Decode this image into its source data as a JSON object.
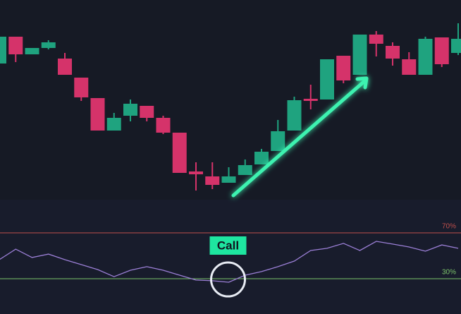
{
  "chart_data": [
    {
      "type": "candlestick",
      "up_color": "#1fa37f",
      "down_color": "#d5336a",
      "ylim": [
        20,
        300
      ],
      "open": [
        210,
        248,
        223,
        232,
        217,
        190,
        161,
        115,
        136,
        150,
        133,
        112,
        57,
        50,
        41,
        52,
        67,
        86,
        115,
        160,
        159,
        221,
        194,
        251,
        235,
        216,
        194,
        247,
        225
      ],
      "high": [
        248,
        248,
        232,
        243,
        225,
        190,
        161,
        140,
        159,
        150,
        136,
        112,
        70,
        70,
        63,
        74,
        89,
        130,
        163,
        180,
        216,
        221,
        251,
        256,
        240,
        226,
        248,
        247,
        267
      ],
      "low": [
        210,
        212,
        223,
        230,
        194,
        157,
        115,
        115,
        128,
        128,
        110,
        55,
        30,
        32,
        41,
        52,
        67,
        86,
        115,
        145,
        159,
        182,
        194,
        220,
        207,
        194,
        194,
        205,
        222
      ],
      "close": [
        248,
        223,
        232,
        240,
        194,
        162,
        115,
        133,
        153,
        133,
        112,
        55,
        53,
        38,
        50,
        66,
        85,
        114,
        158,
        157,
        216,
        186,
        251,
        238,
        217,
        194,
        245,
        209,
        245
      ]
    },
    {
      "type": "line",
      "color": "#9b7fd6",
      "ylim": [
        0,
        100
      ],
      "values": [
        46.6,
        55.8,
        48.5,
        51.5,
        46.6,
        42.3,
        38,
        31.8,
        37.4,
        40.5,
        37.4,
        33.1,
        28.8,
        28.2,
        26.9,
        33.1,
        36.2,
        40.5,
        45.4,
        54.6,
        56.5,
        60.8,
        54.6,
        62.6,
        60.2,
        57.7,
        54,
        59.5,
        56.5
      ],
      "levels": [
        {
          "value": 70,
          "label": "70%",
          "color": "#c0504d"
        },
        {
          "value": 30,
          "label": "30%",
          "color": "#7cc36b"
        }
      ],
      "annotation": {
        "text": "Call",
        "index": 14
      }
    }
  ]
}
